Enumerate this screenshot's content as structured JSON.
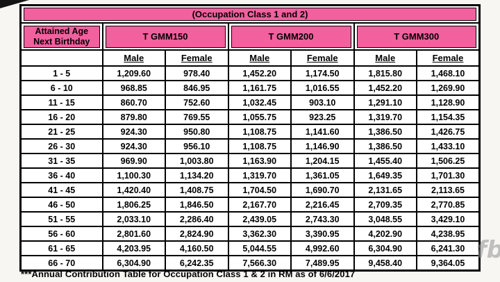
{
  "title": "(Occupation Class 1 and 2)",
  "age_header": {
    "line1": "Attained Age",
    "line2": "Next Birthday"
  },
  "groups": [
    "T GMM150",
    "T GMM200",
    "T GMM300"
  ],
  "sub_headers": [
    "Male",
    "Female"
  ],
  "rows": [
    {
      "age": "1 - 5",
      "values": [
        "1,209.60",
        "978.40",
        "1,452.20",
        "1,174.50",
        "1,815.80",
        "1,468.10"
      ]
    },
    {
      "age": "6 - 10",
      "values": [
        "968.85",
        "846.95",
        "1,161.75",
        "1,016.55",
        "1,452.20",
        "1,269.90"
      ]
    },
    {
      "age": "11 - 15",
      "values": [
        "860.70",
        "752.60",
        "1,032.45",
        "903.10",
        "1,291.10",
        "1,128.90"
      ]
    },
    {
      "age": "16 - 20",
      "values": [
        "879.80",
        "769.55",
        "1,055.75",
        "923.25",
        "1,319.70",
        "1,154.35"
      ]
    },
    {
      "age": "21 - 25",
      "values": [
        "924.30",
        "950.80",
        "1,108.75",
        "1,141.60",
        "1,386.50",
        "1,426.75"
      ]
    },
    {
      "age": "26 - 30",
      "values": [
        "924.30",
        "956.10",
        "1,108.75",
        "1,146.90",
        "1,386.50",
        "1,433.10"
      ]
    },
    {
      "age": "31 - 35",
      "values": [
        "969.90",
        "1,003.80",
        "1,163.90",
        "1,204.15",
        "1,455.40",
        "1,506.25"
      ]
    },
    {
      "age": "36 - 40",
      "values": [
        "1,100.30",
        "1,134.20",
        "1,319.70",
        "1,361.05",
        "1,649.35",
        "1,701.30"
      ]
    },
    {
      "age": "41 - 45",
      "values": [
        "1,420.40",
        "1,408.75",
        "1,704.50",
        "1,690.70",
        "2,131.65",
        "2,113.65"
      ]
    },
    {
      "age": "46 - 50",
      "values": [
        "1,806.25",
        "1,846.50",
        "2,167.70",
        "2,216.45",
        "2,709.35",
        "2,770.85"
      ]
    },
    {
      "age": "51 - 55",
      "values": [
        "2,033.10",
        "2,286.40",
        "2,439.05",
        "2,743.30",
        "3,048.55",
        "3,429.10"
      ]
    },
    {
      "age": "56 - 60",
      "values": [
        "2,801.60",
        "2,824.90",
        "3,362.30",
        "3,390.95",
        "4,202.90",
        "4,238.95"
      ]
    },
    {
      "age": "61 - 65",
      "values": [
        "4,203.95",
        "4,160.50",
        "5,044.55",
        "4,992.60",
        "6,304.90",
        "6,241.30"
      ]
    },
    {
      "age": "66 - 70",
      "values": [
        "6,304.90",
        "6,242.35",
        "7,566.30",
        "7,489.95",
        "9,458.40",
        "9,364.05"
      ]
    }
  ],
  "footer": "***Annual Contribution Table for Occupation Class 1 & 2 in RM as of 6/6/2017",
  "watermark": "fb",
  "colors": {
    "header_pink": "#F2609E",
    "border": "#000000",
    "text": "#000000"
  }
}
